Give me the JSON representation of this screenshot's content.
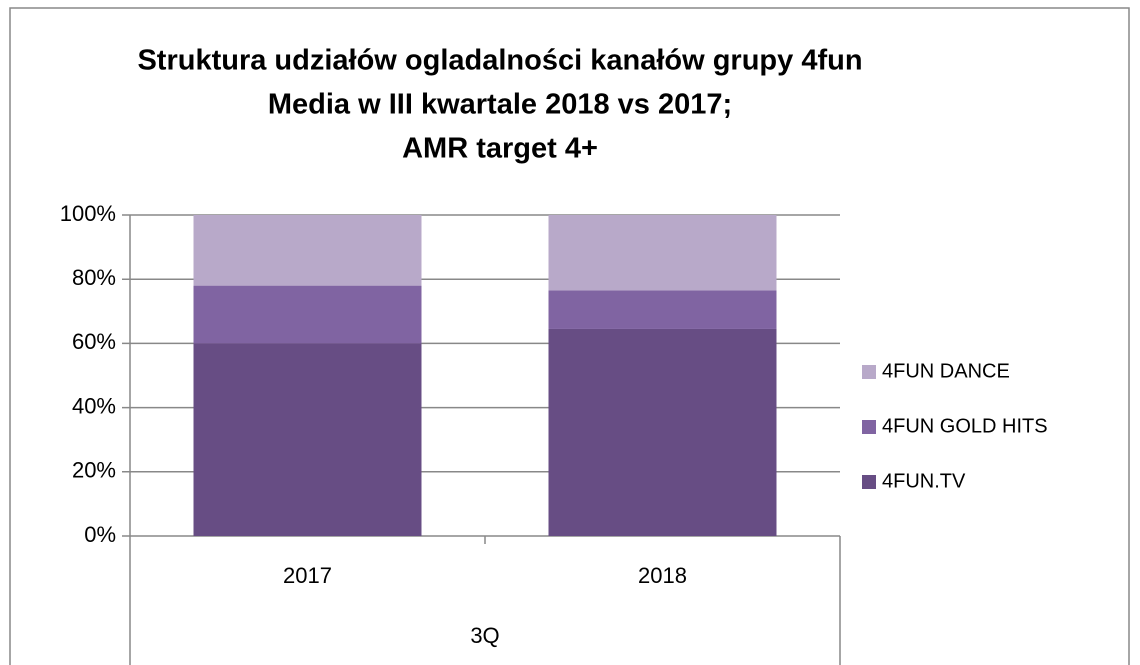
{
  "chart_data": {
    "type": "stacked_bar",
    "title": [
      "Struktura udziałów ogladalności kanałów grupy 4fun",
      "Media w III kwartale 2018 vs 2017;",
      "AMR target 4+"
    ],
    "categories": [
      "2017",
      "2018"
    ],
    "category_group": "3Q",
    "series": [
      {
        "name": "4FUN.TV",
        "color": "#674d84",
        "values": [
          60,
          64.5
        ]
      },
      {
        "name": "4FUN GOLD HITS",
        "color": "#8064a2",
        "values": [
          18,
          12
        ]
      },
      {
        "name": "4FUN DANCE",
        "color": "#b8a9c9",
        "values": [
          22,
          23.5
        ]
      }
    ],
    "ylim": [
      0,
      100
    ],
    "yticks": [
      {
        "value": 0,
        "label": "0%"
      },
      {
        "value": 20,
        "label": "20%"
      },
      {
        "value": 40,
        "label": "40%"
      },
      {
        "value": 60,
        "label": "60%"
      },
      {
        "value": 80,
        "label": "80%"
      },
      {
        "value": 100,
        "label": "100%"
      }
    ],
    "grid": true,
    "legend": "right"
  }
}
